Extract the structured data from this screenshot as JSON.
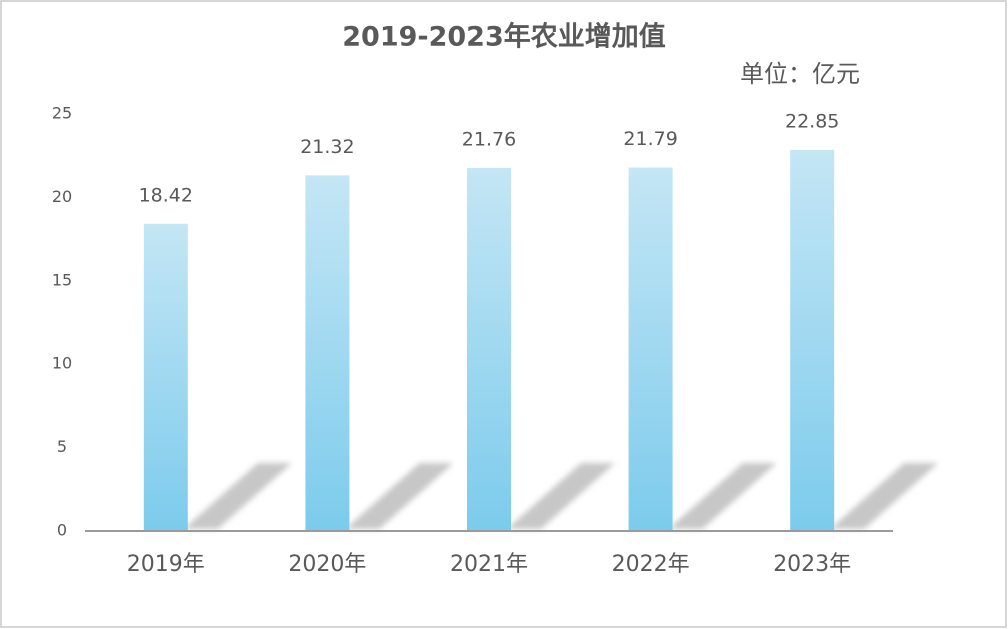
{
  "chart_data": {
    "type": "bar",
    "title": "2019-2023年农业增加值",
    "unit_note": "单位：亿元",
    "categories": [
      "2019年",
      "2020年",
      "2021年",
      "2022年",
      "2023年"
    ],
    "values": [
      18.42,
      21.32,
      21.76,
      21.79,
      22.85
    ],
    "color": "#7ccbec",
    "ylim": [
      0,
      25
    ],
    "yticks": [
      0,
      5,
      10,
      15,
      20,
      25
    ],
    "grid": false
  }
}
